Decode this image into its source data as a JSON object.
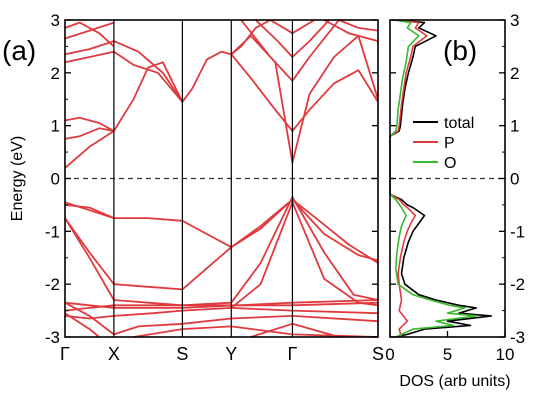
{
  "chart_data": [
    {
      "type": "line",
      "panel_label": "(a)",
      "ylabel": "Energy (eV)",
      "ylim": [
        -3,
        3
      ],
      "yticks": [
        "3",
        "2",
        "1",
        "0",
        "-1",
        "-2",
        "-3"
      ],
      "kpath": [
        "Γ",
        "X",
        "S",
        "Y",
        "Γ",
        "S"
      ],
      "kpath_positions": [
        0,
        1,
        2.4,
        3.4,
        4.65,
        6.4
      ],
      "fermi_level": 0,
      "grid": false,
      "series": [
        {
          "points": [
            [
              0,
              2.85
            ],
            [
              0.3,
              2.95
            ],
            [
              0.7,
              2.75
            ],
            [
              1,
              2.5
            ]
          ]
        },
        {
          "points": [
            [
              0,
              2.65
            ],
            [
              0.5,
              2.8
            ],
            [
              1,
              2.95
            ]
          ]
        },
        {
          "points": [
            [
              0,
              2.35
            ],
            [
              0.5,
              2.45
            ],
            [
              1,
              2.6
            ],
            [
              1.5,
              2.4
            ],
            [
              2,
              2.0
            ],
            [
              2.4,
              1.45
            ],
            [
              2.6,
              1.7
            ],
            [
              2.9,
              2.25
            ],
            [
              3.2,
              2.4
            ],
            [
              3.4,
              2.35
            ],
            [
              3.6,
              2.5
            ],
            [
              3.9,
              2.85
            ],
            [
              4.2,
              3
            ]
          ]
        },
        {
          "points": [
            [
              0,
              2.2
            ],
            [
              0.5,
              2.3
            ],
            [
              1,
              2.4
            ],
            [
              1.4,
              2.15
            ],
            [
              1.9,
              2.0
            ],
            [
              2.4,
              1.45
            ]
          ]
        },
        {
          "points": [
            [
              0,
              1.1
            ],
            [
              0.3,
              1.15
            ],
            [
              0.7,
              1.05
            ],
            [
              1,
              0.9
            ],
            [
              1.4,
              1.5
            ],
            [
              1.7,
              2.1
            ],
            [
              2.0,
              2.2
            ],
            [
              2.4,
              1.45
            ]
          ]
        },
        {
          "points": [
            [
              0,
              0.75
            ],
            [
              0.3,
              0.8
            ],
            [
              0.7,
              0.95
            ],
            [
              1,
              0.9
            ]
          ]
        },
        {
          "points": [
            [
              0,
              0.2
            ],
            [
              0.5,
              0.6
            ],
            [
              1,
              0.9
            ]
          ]
        },
        {
          "points": [
            [
              3.4,
              2.35
            ],
            [
              3.8,
              1.9
            ],
            [
              4.3,
              1.3
            ],
            [
              4.65,
              0.9
            ],
            [
              5.0,
              1.3
            ],
            [
              5.5,
              1.8
            ],
            [
              6.0,
              2.05
            ],
            [
              6.4,
              1.45
            ]
          ]
        },
        {
          "points": [
            [
              3.4,
              2.35
            ],
            [
              3.8,
              2.7
            ],
            [
              4.3,
              2.2
            ],
            [
              4.65,
              0.3
            ],
            [
              5.0,
              1.6
            ],
            [
              5.5,
              2.3
            ],
            [
              6.0,
              2.7
            ],
            [
              6.4,
              1.5
            ]
          ]
        },
        {
          "points": [
            [
              3.6,
              3
            ],
            [
              4.2,
              2.3
            ],
            [
              4.65,
              1.85
            ],
            [
              5.0,
              2.3
            ],
            [
              5.6,
              3
            ]
          ]
        },
        {
          "points": [
            [
              3.9,
              3
            ],
            [
              4.35,
              2.6
            ],
            [
              4.65,
              2.3
            ],
            [
              5.0,
              2.6
            ],
            [
              5.4,
              3
            ]
          ]
        },
        {
          "points": [
            [
              4.2,
              3
            ],
            [
              4.65,
              2.75
            ],
            [
              5.1,
              3
            ]
          ]
        },
        {
          "points": [
            [
              5.3,
              3
            ],
            [
              5.8,
              2.75
            ],
            [
              6.4,
              2.6
            ]
          ]
        },
        {
          "points": [
            [
              5.6,
              3
            ],
            [
              6.0,
              2.85
            ],
            [
              6.4,
              2.8
            ]
          ]
        },
        {
          "points": [
            [
              0,
              -0.45
            ],
            [
              0.5,
              -0.6
            ],
            [
              1,
              -0.75
            ],
            [
              1.7,
              -0.75
            ],
            [
              2.4,
              -0.8
            ],
            [
              2.9,
              -1.05
            ],
            [
              3.4,
              -1.3
            ],
            [
              4.0,
              -0.95
            ],
            [
              4.65,
              -0.4
            ],
            [
              5.2,
              -0.8
            ],
            [
              5.8,
              -1.25
            ],
            [
              6.4,
              -1.6
            ]
          ]
        },
        {
          "points": [
            [
              0,
              -0.5
            ],
            [
              0.5,
              -0.55
            ],
            [
              1,
              -0.75
            ]
          ]
        },
        {
          "points": [
            [
              0,
              -0.75
            ],
            [
              0.5,
              -1.4
            ],
            [
              1,
              -2.0
            ],
            [
              1.7,
              -2.05
            ],
            [
              2.4,
              -2.1
            ],
            [
              2.9,
              -1.7
            ],
            [
              3.4,
              -1.3
            ],
            [
              4.0,
              -0.9
            ],
            [
              4.65,
              -0.4
            ],
            [
              5.3,
              -1.05
            ],
            [
              6.0,
              -1.45
            ],
            [
              6.4,
              -1.55
            ]
          ]
        },
        {
          "points": [
            [
              0,
              -0.75
            ],
            [
              0.5,
              -1.5
            ],
            [
              1,
              -2.3
            ],
            [
              1.7,
              -2.35
            ],
            [
              2.4,
              -2.4
            ],
            [
              3.4,
              -2.35
            ],
            [
              4.0,
              -1.6
            ],
            [
              4.65,
              -0.35
            ],
            [
              5.3,
              -1.4
            ],
            [
              5.9,
              -2.2
            ],
            [
              6.4,
              -2.3
            ]
          ]
        },
        {
          "points": [
            [
              3.4,
              -2.45
            ],
            [
              4.0,
              -2.0
            ],
            [
              4.65,
              -0.45
            ],
            [
              5.3,
              -1.9
            ],
            [
              6.0,
              -2.35
            ],
            [
              6.4,
              -2.4
            ]
          ]
        },
        {
          "points": [
            [
              0,
              -2.35
            ],
            [
              0.5,
              -2.4
            ],
            [
              1,
              -2.45
            ],
            [
              2.4,
              -2.45
            ],
            [
              4.65,
              -2.35
            ],
            [
              6.4,
              -2.3
            ]
          ]
        },
        {
          "points": [
            [
              0,
              -2.5
            ],
            [
              0.5,
              -2.45
            ],
            [
              1,
              -2.4
            ],
            [
              2.4,
              -2.4
            ],
            [
              4.65,
              -2.4
            ],
            [
              6.4,
              -2.35
            ]
          ]
        },
        {
          "points": [
            [
              0,
              -2.6
            ],
            [
              0.5,
              -2.65
            ],
            [
              1,
              -2.6
            ],
            [
              1.8,
              -2.55
            ],
            [
              2.4,
              -2.5
            ],
            [
              3.4,
              -2.45
            ],
            [
              4.65,
              -2.5
            ],
            [
              6.4,
              -2.55
            ]
          ]
        },
        {
          "points": [
            [
              0,
              -2.35
            ],
            [
              0.5,
              -2.6
            ],
            [
              1,
              -2.95
            ],
            [
              1.5,
              -2.8
            ],
            [
              2.4,
              -2.75
            ],
            [
              3.4,
              -2.65
            ],
            [
              4.65,
              -2.6
            ],
            [
              6.4,
              -2.7
            ]
          ]
        },
        {
          "points": [
            [
              0,
              -2.55
            ],
            [
              0.5,
              -2.85
            ],
            [
              0.7,
              -3
            ]
          ]
        },
        {
          "points": [
            [
              1.4,
              -3
            ],
            [
              2.4,
              -2.85
            ],
            [
              3.4,
              -2.8
            ],
            [
              4.65,
              -2.95
            ],
            [
              6.4,
              -3
            ]
          ]
        },
        {
          "points": [
            [
              3.8,
              -3
            ],
            [
              4.65,
              -2.75
            ],
            [
              5.6,
              -3
            ]
          ]
        }
      ],
      "colors": {
        "bands": "#e03a3e",
        "fermi": "#333333",
        "frame": "#000000"
      }
    },
    {
      "type": "line",
      "panel_label": "(b)",
      "xlabel": "DOS (arb units)",
      "xlim": [
        0,
        10
      ],
      "xticks": [
        "0",
        "5",
        "10"
      ],
      "ylim": [
        -3,
        3
      ],
      "yticks": [
        "3",
        "2",
        "1",
        "0",
        "-1",
        "-2",
        "-3"
      ],
      "fermi_level": 0,
      "legend": {
        "position": "right",
        "entries": [
          "total",
          "P",
          "O"
        ]
      },
      "series": [
        {
          "name": "total",
          "color": "#000000",
          "points": [
            [
              0.8,
              3.0
            ],
            [
              3.0,
              2.95
            ],
            [
              2.5,
              2.85
            ],
            [
              4.0,
              2.7
            ],
            [
              2.2,
              2.5
            ],
            [
              2.0,
              2.3
            ],
            [
              1.6,
              2.0
            ],
            [
              1.3,
              1.7
            ],
            [
              1.1,
              1.4
            ],
            [
              1.0,
              1.2
            ],
            [
              0.9,
              1.0
            ],
            [
              0.8,
              0.9
            ],
            [
              0,
              0.8
            ],
            [
              0,
              -0.3
            ],
            [
              1.0,
              -0.4
            ],
            [
              1.5,
              -0.5
            ],
            [
              2.0,
              -0.55
            ],
            [
              3.0,
              -0.7
            ],
            [
              2.5,
              -0.85
            ],
            [
              2.0,
              -1.0
            ],
            [
              1.6,
              -1.2
            ],
            [
              1.2,
              -1.5
            ],
            [
              1.0,
              -1.8
            ],
            [
              1.3,
              -2.0
            ],
            [
              2.5,
              -2.2
            ],
            [
              4.0,
              -2.3
            ],
            [
              6.0,
              -2.4
            ],
            [
              7.5,
              -2.45
            ],
            [
              6.0,
              -2.55
            ],
            [
              8.8,
              -2.6
            ],
            [
              5.0,
              -2.7
            ],
            [
              7.0,
              -2.78
            ],
            [
              3.0,
              -2.85
            ],
            [
              1.5,
              -2.95
            ],
            [
              0.5,
              -3.0
            ]
          ]
        },
        {
          "name": "P",
          "color": "#e03a3e",
          "points": [
            [
              0.6,
              3.0
            ],
            [
              2.5,
              2.95
            ],
            [
              2.2,
              2.85
            ],
            [
              3.2,
              2.7
            ],
            [
              2.0,
              2.5
            ],
            [
              1.8,
              2.3
            ],
            [
              1.4,
              2.0
            ],
            [
              1.2,
              1.7
            ],
            [
              1.0,
              1.4
            ],
            [
              0.9,
              1.2
            ],
            [
              0.8,
              1.0
            ],
            [
              0.7,
              0.9
            ],
            [
              0,
              0.8
            ],
            [
              0,
              -0.3
            ],
            [
              0.8,
              -0.4
            ],
            [
              1.2,
              -0.5
            ],
            [
              1.5,
              -0.55
            ],
            [
              2.2,
              -0.7
            ],
            [
              1.8,
              -0.85
            ],
            [
              1.5,
              -1.0
            ],
            [
              1.2,
              -1.2
            ],
            [
              0.9,
              -1.5
            ],
            [
              0.7,
              -1.8
            ],
            [
              0.8,
              -2.0
            ],
            [
              1.0,
              -2.3
            ],
            [
              0.8,
              -2.5
            ],
            [
              1.5,
              -2.7
            ],
            [
              0.8,
              -2.85
            ],
            [
              1.0,
              -3.0
            ]
          ]
        },
        {
          "name": "O",
          "color": "#3cb830",
          "points": [
            [
              0.3,
              3.0
            ],
            [
              1.8,
              2.95
            ],
            [
              1.5,
              2.85
            ],
            [
              2.5,
              2.7
            ],
            [
              1.6,
              2.5
            ],
            [
              1.4,
              2.2
            ],
            [
              1.1,
              1.9
            ],
            [
              0.9,
              1.6
            ],
            [
              0.7,
              1.3
            ],
            [
              0.6,
              1.0
            ],
            [
              0.5,
              0.9
            ],
            [
              0,
              0.8
            ],
            [
              0,
              -0.3
            ],
            [
              0.5,
              -0.4
            ],
            [
              1.0,
              -0.55
            ],
            [
              1.4,
              -0.7
            ],
            [
              1.0,
              -0.9
            ],
            [
              0.8,
              -1.1
            ],
            [
              0.6,
              -1.4
            ],
            [
              0.5,
              -1.7
            ],
            [
              0.7,
              -2.0
            ],
            [
              2.0,
              -2.2
            ],
            [
              3.5,
              -2.3
            ],
            [
              5.2,
              -2.4
            ],
            [
              6.5,
              -2.45
            ],
            [
              5.0,
              -2.55
            ],
            [
              7.5,
              -2.6
            ],
            [
              4.0,
              -2.7
            ],
            [
              5.5,
              -2.78
            ],
            [
              2.0,
              -2.85
            ],
            [
              0.5,
              -3.0
            ]
          ]
        }
      ]
    }
  ]
}
